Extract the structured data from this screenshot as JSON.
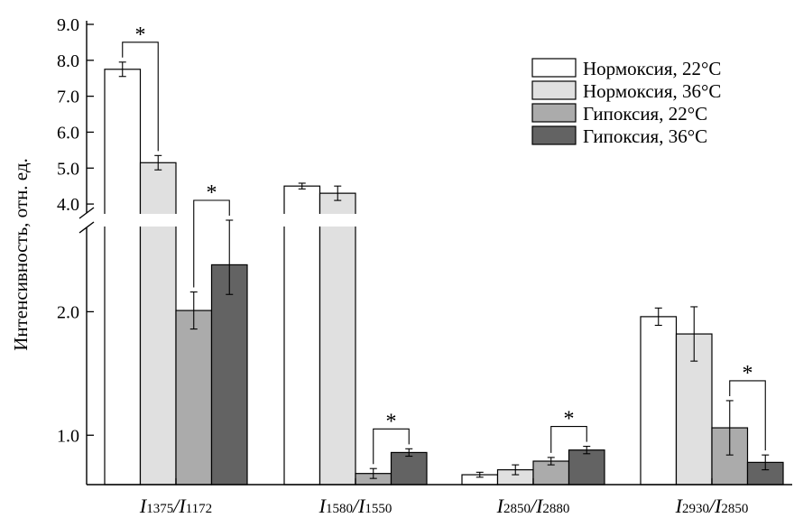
{
  "chart_data": {
    "type": "bar",
    "ylabel": "Интенсивность, отн. ед.",
    "y_axis": {
      "broken": true,
      "lower_ticks": [
        "1.0",
        "2.0"
      ],
      "upper_ticks": [
        "4.0",
        "5.0",
        "6.0",
        "7.0",
        "8.0",
        "9.0"
      ],
      "lower_range": [
        0.6,
        2.5
      ],
      "upper_range": [
        3.55,
        9.0
      ]
    },
    "categories": [
      {
        "main": "I",
        "sub": "1375",
        "main2": "I",
        "sub2": "1172"
      },
      {
        "main": "I",
        "sub": "1580",
        "main2": "I",
        "sub2": "1550"
      },
      {
        "main": "I",
        "sub": "2850",
        "main2": "I",
        "sub2": "2880"
      },
      {
        "main": "I",
        "sub": "2930",
        "main2": "I",
        "sub2": "2850"
      }
    ],
    "series": [
      {
        "name": "Нормоксия, 22°C",
        "color": "#ffffff",
        "values": [
          7.75,
          4.5,
          0.68,
          1.96
        ],
        "errors": [
          0.2,
          0.08,
          0.02,
          0.07
        ]
      },
      {
        "name": "Нормоксия, 36°C",
        "color": "#e0e0e0",
        "values": [
          5.15,
          4.3,
          0.72,
          1.82
        ],
        "errors": [
          0.2,
          0.2,
          0.04,
          0.22
        ]
      },
      {
        "name": "Гипоксия, 22°C",
        "color": "#ababab",
        "values": [
          2.01,
          0.69,
          0.79,
          1.06
        ],
        "errors": [
          0.15,
          0.04,
          0.03,
          0.22
        ]
      },
      {
        "name": "Гипоксия, 36°C",
        "color": "#636363",
        "values": [
          2.38,
          0.86,
          0.88,
          0.78
        ],
        "errors": [
          0.24,
          0.03,
          0.03,
          0.06
        ]
      }
    ],
    "significance": [
      {
        "category": 0,
        "from": 0,
        "to": 1,
        "label": "*"
      },
      {
        "category": 0,
        "from": 2,
        "to": 3,
        "label": "*"
      },
      {
        "category": 1,
        "from": 2,
        "to": 3,
        "label": "*"
      },
      {
        "category": 2,
        "from": 2,
        "to": 3,
        "label": "*"
      },
      {
        "category": 3,
        "from": 2,
        "to": 3,
        "label": "*"
      }
    ],
    "legend_position": "top-right",
    "grid": false
  }
}
